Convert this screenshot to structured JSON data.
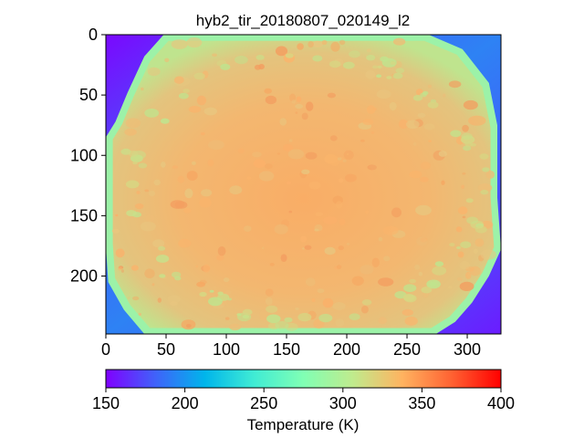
{
  "chart_data": {
    "type": "heatmap",
    "title": "hyb2_tir_20180807_020149_l2",
    "xlabel": "",
    "ylabel": "",
    "xlim": [
      0,
      328
    ],
    "ylim": [
      248,
      0
    ],
    "x_ticks": [
      0,
      50,
      100,
      150,
      200,
      250,
      300
    ],
    "y_ticks": [
      0,
      50,
      100,
      150,
      200
    ],
    "grid": false,
    "colormap": "rainbow",
    "colorbar": {
      "label": "Temperature (K)",
      "orientation": "horizontal",
      "placement": "bottom",
      "range": [
        150,
        400
      ],
      "ticks": [
        150,
        200,
        250,
        300,
        350,
        400
      ]
    },
    "background_temperature_K": 150,
    "body_shape": "Ryugu (spinning-top asteroid), roughly octagonal silhouette filling the frame",
    "body_mean_temperature_K": 330,
    "body_limb_temperature_K": 285,
    "warm_region_temperature_K": 345
  }
}
